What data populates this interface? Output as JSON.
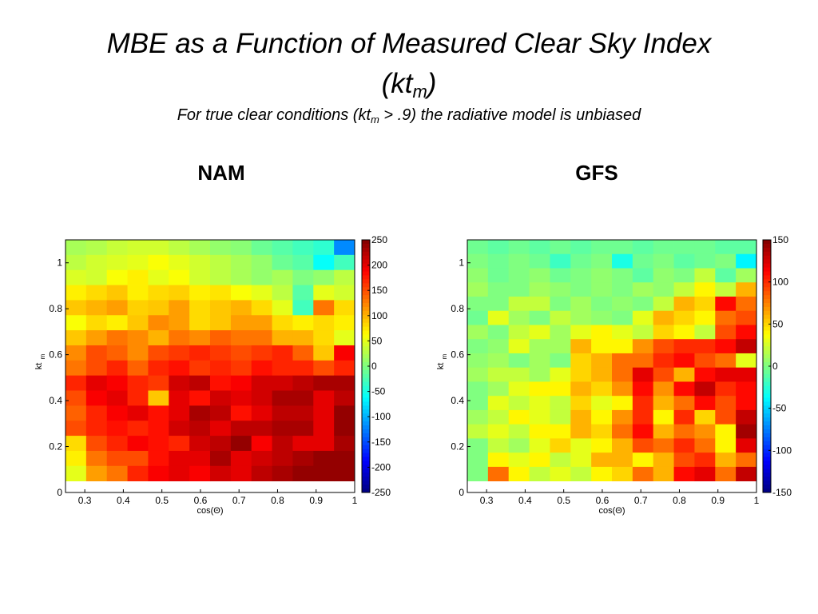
{
  "slide": {
    "title_main": "MBE as a Function of Measured Clear Sky Index",
    "title_kt": "(kt",
    "title_sub": "m",
    "title_close": ")",
    "subtitle_pre": "For true clear conditions (kt",
    "subtitle_sub": "m",
    "subtitle_post": " > .9) the radiative model is unbiased"
  },
  "chart_data": [
    {
      "type": "heatmap",
      "title": "NAM",
      "xlabel": "cos(Θ)",
      "ylabel": "kt",
      "ylabel_sub": "m",
      "x_ticks": [
        "0.3",
        "0.4",
        "0.5",
        "0.6",
        "0.7",
        "0.8",
        "0.9",
        "1"
      ],
      "y_ticks": [
        "0",
        "0.2",
        "0.4",
        "0.6",
        "0.8",
        "1"
      ],
      "x_range": [
        0.25,
        1.0
      ],
      "y_range": [
        0.05,
        1.1
      ],
      "colorbar_ticks": [
        "250",
        "200",
        "150",
        "100",
        "50",
        "0",
        "-50",
        "-100",
        "-150",
        "-200",
        "-250"
      ],
      "colorbar_range": [
        -250,
        250
      ],
      "rows_top_to_bottom": [
        [
          20,
          25,
          35,
          40,
          40,
          30,
          20,
          10,
          5,
          -10,
          -20,
          -30,
          -40,
          -120
        ],
        [
          30,
          40,
          45,
          50,
          60,
          50,
          40,
          30,
          20,
          10,
          -10,
          -20,
          -60,
          -30
        ],
        [
          45,
          40,
          60,
          70,
          50,
          60,
          40,
          30,
          20,
          10,
          20,
          0,
          10,
          30
        ],
        [
          70,
          80,
          90,
          70,
          80,
          85,
          70,
          75,
          60,
          50,
          30,
          -20,
          50,
          40
        ],
        [
          90,
          100,
          110,
          85,
          90,
          110,
          80,
          90,
          100,
          80,
          50,
          -30,
          130,
          80
        ],
        [
          60,
          80,
          70,
          90,
          120,
          110,
          80,
          90,
          110,
          110,
          80,
          70,
          80,
          70
        ],
        [
          90,
          110,
          130,
          120,
          100,
          130,
          120,
          140,
          130,
          130,
          100,
          100,
          80,
          50
        ],
        [
          120,
          150,
          140,
          120,
          150,
          160,
          170,
          160,
          150,
          160,
          170,
          140,
          90,
          190
        ],
        [
          130,
          150,
          170,
          140,
          170,
          180,
          160,
          170,
          160,
          180,
          170,
          170,
          150,
          170
        ],
        [
          170,
          200,
          190,
          170,
          160,
          210,
          220,
          180,
          190,
          210,
          210,
          220,
          230,
          230
        ],
        [
          150,
          190,
          200,
          170,
          90,
          200,
          180,
          210,
          200,
          210,
          230,
          230,
          200,
          220
        ],
        [
          140,
          170,
          190,
          200,
          180,
          200,
          230,
          220,
          180,
          200,
          220,
          220,
          200,
          240
        ],
        [
          150,
          170,
          180,
          170,
          180,
          210,
          220,
          200,
          220,
          220,
          230,
          230,
          200,
          240
        ],
        [
          80,
          150,
          170,
          190,
          180,
          170,
          210,
          220,
          240,
          190,
          220,
          200,
          200,
          230
        ],
        [
          70,
          130,
          150,
          150,
          180,
          200,
          200,
          230,
          200,
          210,
          220,
          230,
          240,
          240
        ],
        [
          50,
          110,
          130,
          170,
          190,
          200,
          190,
          210,
          200,
          220,
          230,
          240,
          240,
          240
        ]
      ]
    },
    {
      "type": "heatmap",
      "title": "GFS",
      "xlabel": "cos(Θ)",
      "ylabel": "kt",
      "ylabel_sub": "m",
      "x_ticks": [
        "0.3",
        "0.4",
        "0.5",
        "0.6",
        "0.7",
        "0.8",
        "0.9",
        "1"
      ],
      "y_ticks": [
        "0",
        "0.2",
        "0.4",
        "0.6",
        "0.8",
        "1"
      ],
      "x_range": [
        0.25,
        1.0
      ],
      "y_range": [
        0.05,
        1.1
      ],
      "colorbar_ticks": [
        "150",
        "100",
        "50",
        "0",
        "-50",
        "-100",
        "-150"
      ],
      "colorbar_range": [
        -150,
        150
      ],
      "rows_top_to_bottom": [
        [
          -5,
          -10,
          -5,
          -10,
          -5,
          -10,
          -5,
          -5,
          -10,
          -5,
          -5,
          -5,
          -10,
          -10
        ],
        [
          0,
          -5,
          0,
          -5,
          -20,
          -5,
          0,
          -30,
          -5,
          0,
          -10,
          -5,
          0,
          -40
        ],
        [
          5,
          -5,
          0,
          5,
          -5,
          0,
          5,
          0,
          -10,
          5,
          0,
          20,
          -10,
          10
        ],
        [
          10,
          0,
          0,
          10,
          5,
          0,
          5,
          0,
          10,
          5,
          20,
          40,
          20,
          60
        ],
        [
          0,
          0,
          20,
          20,
          0,
          10,
          0,
          5,
          0,
          20,
          60,
          50,
          110,
          80
        ],
        [
          -5,
          30,
          10,
          0,
          20,
          10,
          5,
          0,
          30,
          60,
          50,
          40,
          80,
          90
        ],
        [
          10,
          0,
          20,
          30,
          10,
          30,
          40,
          30,
          20,
          50,
          40,
          20,
          90,
          110
        ],
        [
          0,
          5,
          30,
          10,
          10,
          60,
          40,
          40,
          70,
          90,
          100,
          100,
          110,
          130
        ],
        [
          5,
          10,
          0,
          10,
          0,
          50,
          60,
          80,
          80,
          100,
          110,
          90,
          80,
          30
        ],
        [
          10,
          20,
          20,
          10,
          30,
          50,
          60,
          80,
          120,
          90,
          60,
          110,
          120,
          120
        ],
        [
          0,
          10,
          30,
          40,
          40,
          60,
          50,
          70,
          110,
          70,
          110,
          130,
          100,
          110
        ],
        [
          0,
          30,
          20,
          30,
          20,
          50,
          30,
          40,
          100,
          60,
          80,
          110,
          90,
          110
        ],
        [
          10,
          20,
          40,
          30,
          20,
          60,
          40,
          70,
          100,
          40,
          100,
          50,
          90,
          130
        ],
        [
          20,
          30,
          20,
          40,
          40,
          60,
          50,
          80,
          110,
          60,
          80,
          70,
          40,
          140
        ],
        [
          0,
          20,
          10,
          30,
          50,
          30,
          40,
          60,
          90,
          80,
          100,
          80,
          40,
          120
        ],
        [
          0,
          40,
          30,
          40,
          20,
          30,
          60,
          60,
          40,
          60,
          90,
          100,
          60,
          80
        ],
        [
          0,
          80,
          40,
          20,
          30,
          20,
          40,
          50,
          80,
          60,
          110,
          120,
          80,
          130
        ]
      ]
    }
  ]
}
